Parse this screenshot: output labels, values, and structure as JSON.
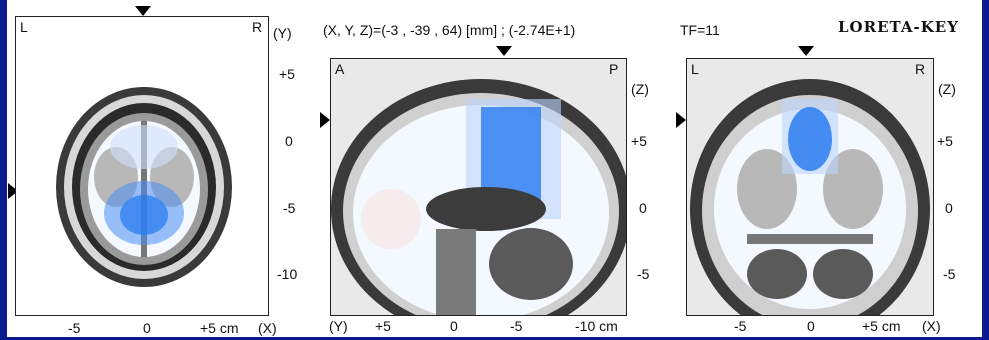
{
  "header": {
    "coordinate_readout": "(X, Y, Z)=(-3 , -39 , 64) [mm] ;  (-2.74E+1)",
    "timeframe": "TF=11",
    "app_title": "LORETA-KEY"
  },
  "axial_view": {
    "left_label": "L",
    "right_label": "R",
    "axis_label": "(Y)",
    "y_ticks": [
      "+5",
      "0",
      "-5",
      "-10"
    ],
    "x_ticks": [
      "-5",
      "0",
      "+5 cm"
    ],
    "x_axis_label": "(X)"
  },
  "sagittal_view": {
    "left_label": "A",
    "right_label": "P",
    "axis_label": "(Z)",
    "z_ticks": [
      "+5",
      "0",
      "-5"
    ],
    "y_axis_label": "(Y)",
    "y_ticks": [
      "+5",
      "0",
      "-5",
      "-10 cm"
    ]
  },
  "coronal_view": {
    "left_label": "L",
    "right_label": "R",
    "axis_label": "(Z)",
    "z_ticks": [
      "+5",
      "0",
      "-5"
    ],
    "x_ticks": [
      "-5",
      "0",
      "+5 cm"
    ],
    "x_axis_label": "(X)"
  },
  "colors": {
    "frame": "#0b1a8f",
    "activation": "#2a7cf0"
  }
}
